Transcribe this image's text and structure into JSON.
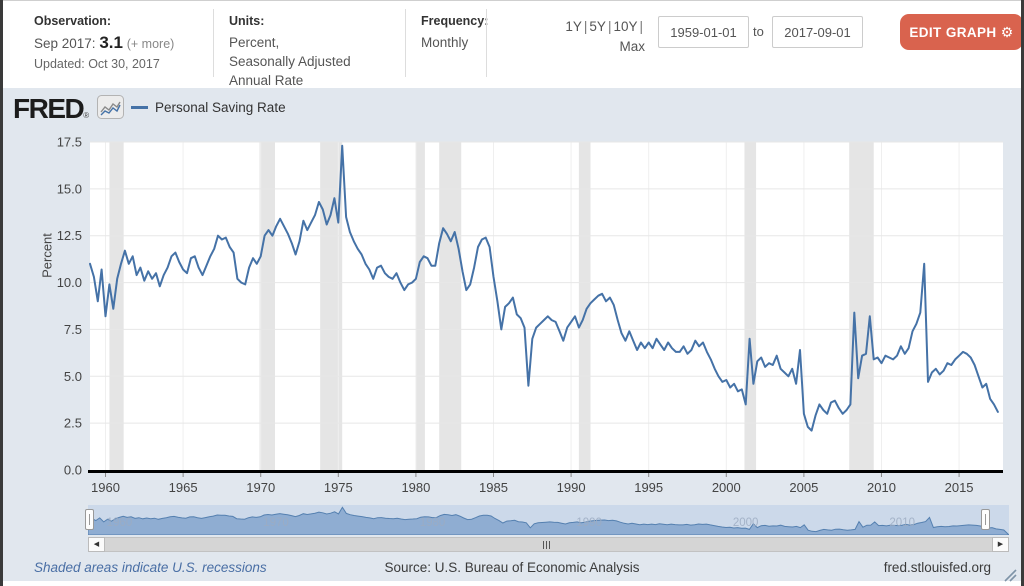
{
  "header": {
    "observation": {
      "label": "Observation:",
      "date": "Sep 2017:",
      "value": "3.1",
      "more": "(+ more)",
      "updated": "Updated: Oct 30, 2017"
    },
    "units": {
      "label": "Units:",
      "line1": "Percent,",
      "line2": "Seasonally Adjusted",
      "line3": "Annual Rate"
    },
    "frequency": {
      "label": "Frequency:",
      "value": "Monthly"
    },
    "ranges": {
      "y1": "1Y",
      "y5": "5Y",
      "y10": "10Y",
      "max": "Max",
      "sep": "|"
    },
    "date_range": {
      "start": "1959-01-01",
      "to_label": "to",
      "end": "2017-09-01"
    },
    "edit_button": {
      "label": "EDIT GRAPH",
      "gear_icon": "⚙"
    }
  },
  "branding": {
    "logo": "FRED",
    "registered": "®"
  },
  "legend": {
    "series_label": "Personal Saving Rate"
  },
  "footer": {
    "recession_note": "Shaded areas indicate U.S. recessions",
    "source": "Source: U.S. Bureau of Economic Analysis",
    "site": "fred.stlouisfed.org"
  },
  "chart_data": {
    "type": "line",
    "title": "Personal Saving Rate",
    "xlabel": "",
    "ylabel": "Percent",
    "xlim": [
      1959.0,
      2017.83
    ],
    "ylim": [
      0,
      17.5
    ],
    "xticks": [
      1960,
      1965,
      1970,
      1975,
      1980,
      1985,
      1990,
      1995,
      2000,
      2005,
      2010,
      2015
    ],
    "yticks": [
      0.0,
      2.5,
      5.0,
      7.5,
      10.0,
      12.5,
      15.0,
      17.5
    ],
    "ytick_labels": [
      "0.0",
      "2.5",
      "5.0",
      "7.5",
      "10.0",
      "12.5",
      "15.0",
      "17.5"
    ],
    "grid": true,
    "legend_position": "top-left",
    "x_start": 1959.0,
    "x_step": 0.25,
    "series": [
      {
        "name": "Personal Saving Rate",
        "color": "#4572a7",
        "values": [
          11.0,
          10.3,
          9.0,
          10.7,
          8.2,
          9.9,
          8.6,
          10.2,
          11.0,
          11.7,
          11.0,
          11.4,
          10.4,
          10.8,
          10.1,
          10.6,
          10.2,
          10.5,
          9.8,
          10.4,
          10.8,
          11.4,
          11.6,
          11.1,
          10.7,
          10.5,
          11.3,
          11.4,
          10.8,
          10.4,
          10.9,
          11.4,
          11.8,
          12.5,
          12.3,
          12.4,
          11.9,
          11.6,
          10.2,
          10.0,
          9.9,
          10.8,
          11.3,
          11.0,
          11.4,
          12.5,
          12.8,
          12.5,
          13.0,
          13.4,
          13.0,
          12.6,
          12.1,
          11.5,
          12.2,
          13.3,
          12.8,
          13.2,
          13.6,
          14.3,
          13.9,
          13.1,
          13.6,
          14.5,
          13.2,
          17.3,
          13.5,
          12.7,
          12.2,
          11.8,
          11.5,
          11.0,
          10.7,
          10.2,
          10.8,
          10.9,
          10.5,
          10.3,
          10.2,
          10.5,
          10.0,
          9.6,
          9.9,
          10.0,
          10.2,
          11.1,
          11.4,
          11.3,
          10.9,
          10.9,
          12.1,
          12.9,
          12.6,
          12.2,
          12.7,
          11.8,
          10.6,
          9.6,
          9.9,
          10.8,
          11.9,
          12.3,
          12.4,
          11.9,
          10.3,
          9.0,
          7.5,
          8.7,
          8.9,
          9.2,
          8.3,
          8.1,
          7.6,
          4.5,
          7.0,
          7.6,
          7.8,
          8.0,
          8.2,
          8.0,
          7.9,
          7.4,
          6.9,
          7.6,
          7.9,
          8.2,
          7.6,
          8.0,
          8.6,
          8.9,
          9.1,
          9.3,
          9.4,
          9.0,
          9.2,
          8.8,
          8.0,
          7.3,
          6.9,
          7.4,
          6.9,
          6.4,
          6.8,
          6.5,
          6.8,
          6.5,
          7.0,
          6.7,
          6.4,
          6.8,
          6.5,
          6.3,
          6.3,
          6.6,
          6.2,
          6.4,
          6.9,
          6.6,
          6.8,
          6.3,
          5.9,
          5.4,
          5.0,
          4.7,
          4.8,
          4.4,
          4.6,
          4.2,
          4.3,
          3.5,
          7.0,
          4.6,
          5.8,
          6.0,
          5.5,
          5.7,
          5.6,
          6.1,
          5.4,
          5.2,
          5.0,
          5.4,
          4.6,
          6.4,
          3.0,
          2.3,
          2.1,
          2.9,
          3.5,
          3.2,
          3.0,
          3.6,
          3.7,
          3.3,
          3.0,
          3.2,
          3.5,
          8.4,
          4.9,
          6.1,
          6.2,
          8.2,
          5.9,
          6.0,
          5.7,
          6.1,
          6.0,
          5.9,
          6.1,
          6.6,
          6.2,
          6.5,
          7.4,
          7.8,
          8.4,
          11.0,
          4.7,
          5.2,
          5.4,
          5.1,
          5.3,
          5.7,
          5.6,
          5.9,
          6.1,
          6.3,
          6.2,
          6.0,
          5.6,
          5.0,
          4.4,
          4.6,
          3.8,
          3.5,
          3.1
        ]
      }
    ],
    "recessions": [
      [
        1960.25,
        1961.17
      ],
      [
        1969.92,
        1970.92
      ],
      [
        1973.83,
        1975.25
      ],
      [
        1980.0,
        1980.58
      ],
      [
        1981.5,
        1982.92
      ],
      [
        1990.5,
        1991.25
      ],
      [
        2001.17,
        2001.92
      ],
      [
        2007.92,
        2009.5
      ]
    ],
    "minimap_decade_labels": [
      "1960",
      "1970",
      "1980",
      "1990",
      "2000",
      "2010"
    ],
    "colors": {
      "line": "#4572a7",
      "recession_band": "#e5e5e5",
      "h_grid": "#e7e7e7",
      "v_grid": "#efefef",
      "axis": "#000000",
      "tick_text": "#444444",
      "chart_bg": "#e1e7ee",
      "plot_bg": "#ffffff",
      "minimap_bg": "#ccd9ea",
      "minimap_fill": "#8fadd2",
      "minimap_line": "#5580b0",
      "accent_button": "#d9634e"
    }
  }
}
